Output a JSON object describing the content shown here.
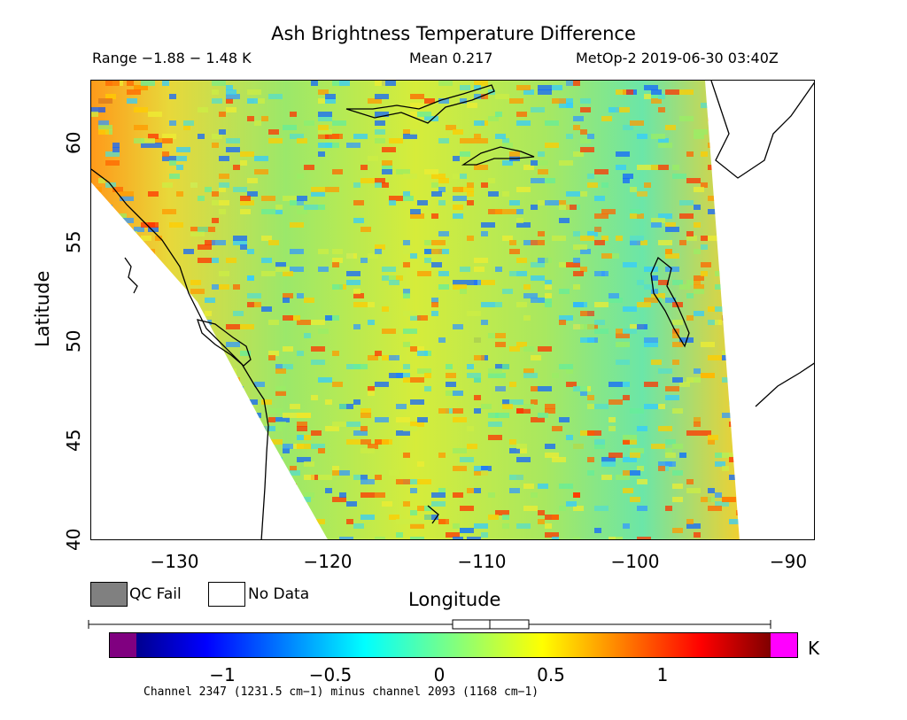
{
  "title": "Ash Brightness Temperature Difference",
  "header": {
    "range": "Range −1.88 − 1.48 K",
    "mean": "Mean 0.217",
    "satellite_time": "MetOp-2 2019-06-30 03:40Z"
  },
  "axes": {
    "xlabel": "Longitude",
    "ylabel": "Latitude",
    "xticks": [
      "−130",
      "−120",
      "−110",
      "−100",
      "−90"
    ],
    "xtick_values": [
      -130,
      -120,
      -110,
      -100,
      -90
    ],
    "yticks": [
      "40",
      "45",
      "50",
      "55",
      "60"
    ],
    "ytick_values": [
      40,
      45,
      50,
      55,
      60
    ],
    "xlim": [
      -135,
      -88
    ],
    "ylim": [
      40,
      63
    ]
  },
  "legend": {
    "qc_fail": "QC Fail",
    "qc_fail_color": "#808080",
    "no_data": "No Data",
    "no_data_color": "#ffffff"
  },
  "colorbar": {
    "ticks": [
      "−1",
      "−0.5",
      "0",
      "0.5",
      "1"
    ],
    "tick_values": [
      -1,
      -0.5,
      0,
      0.5,
      1
    ],
    "range": [
      -1.5,
      1.5
    ],
    "unit": "K",
    "under_color": "#800080",
    "over_color": "#ff00ff",
    "colormap": "jet",
    "boxplot": {
      "min": -1.88,
      "max": 1.48,
      "mean": 0.217
    }
  },
  "footnote": "Channel 2347 (1231.5 cm−1) minus channel 2093 (1168 cm−1)"
}
